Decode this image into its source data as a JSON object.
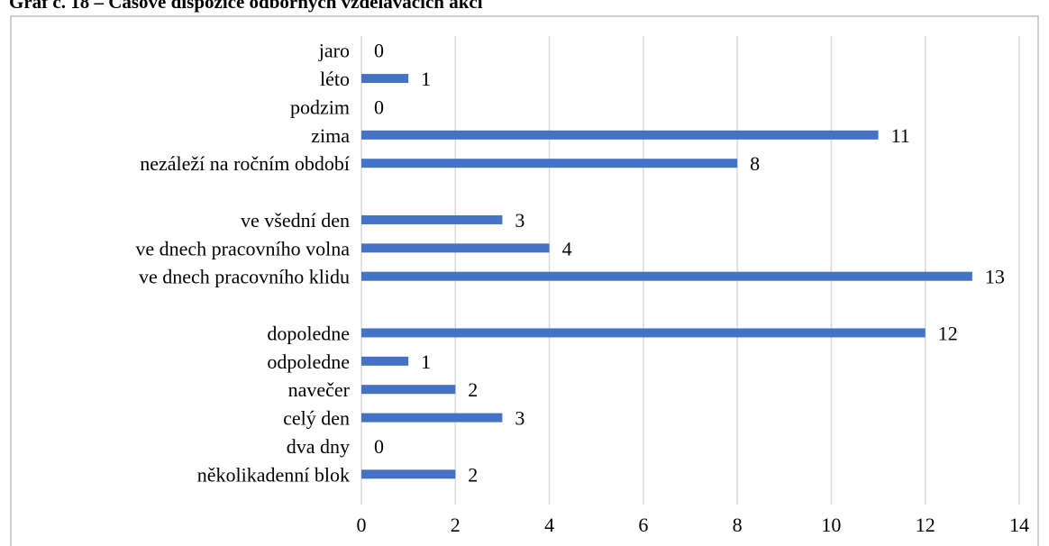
{
  "chart_data": {
    "type": "barh",
    "title": "Graf č. 18 – Časové dispozice odborných vzdělávacích akcí",
    "categories": [
      "jaro",
      "léto",
      "podzim",
      "zima",
      "nezáleží na ročním období",
      null,
      "ve všední den",
      "ve dnech pracovního volna",
      "ve dnech pracovního klidu",
      null,
      "dopoledne",
      "odpoledne",
      "navečer",
      "celý den",
      "dva dny",
      "několikadenní blok"
    ],
    "values": [
      0,
      1,
      0,
      11,
      8,
      null,
      3,
      4,
      13,
      null,
      12,
      1,
      2,
      3,
      0,
      2
    ],
    "color": "#4472c4",
    "xlim": [
      0,
      14
    ],
    "xticks": [
      0,
      2,
      4,
      6,
      8,
      10,
      12,
      14
    ],
    "grid": true
  }
}
